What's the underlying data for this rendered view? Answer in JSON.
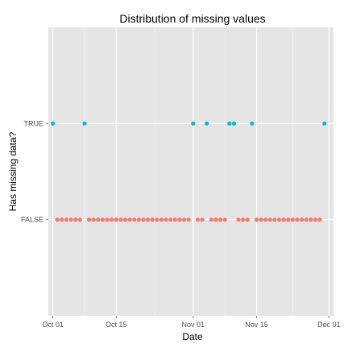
{
  "chart_data": {
    "type": "scatter",
    "title": "Distribution of missing values",
    "xlabel": "Date",
    "ylabel": "Has missing data?",
    "x_axis": {
      "type": "date",
      "range": [
        "2013-09-30",
        "2013-12-02"
      ],
      "ticks": [
        {
          "value": "2013-10-01",
          "label": "Oct 01"
        },
        {
          "value": "2013-10-15",
          "label": "Oct 15"
        },
        {
          "value": "2013-11-01",
          "label": "Nov 01"
        },
        {
          "value": "2013-11-15",
          "label": "Nov 15"
        },
        {
          "value": "2013-12-01",
          "label": "Dec 01"
        }
      ]
    },
    "categories": [
      "FALSE",
      "TRUE"
    ],
    "grid": true,
    "legend": "none",
    "series": [
      {
        "category": "TRUE",
        "color": "#00BFC4",
        "x": [
          "2013-10-01",
          "2013-10-08",
          "2013-11-01",
          "2013-11-04",
          "2013-11-09",
          "2013-11-10",
          "2013-11-14",
          "2013-11-30"
        ]
      },
      {
        "category": "FALSE",
        "color": "#F8766D",
        "x": [
          "2013-10-02",
          "2013-10-03",
          "2013-10-04",
          "2013-10-05",
          "2013-10-06",
          "2013-10-07",
          "2013-10-09",
          "2013-10-10",
          "2013-10-11",
          "2013-10-12",
          "2013-10-13",
          "2013-10-14",
          "2013-10-15",
          "2013-10-16",
          "2013-10-17",
          "2013-10-18",
          "2013-10-19",
          "2013-10-20",
          "2013-10-21",
          "2013-10-22",
          "2013-10-23",
          "2013-10-24",
          "2013-10-25",
          "2013-10-26",
          "2013-10-27",
          "2013-10-28",
          "2013-10-29",
          "2013-10-30",
          "2013-10-31",
          "2013-11-02",
          "2013-11-03",
          "2013-11-05",
          "2013-11-06",
          "2013-11-07",
          "2013-11-08",
          "2013-11-11",
          "2013-11-12",
          "2013-11-13",
          "2013-11-15",
          "2013-11-16",
          "2013-11-17",
          "2013-11-18",
          "2013-11-19",
          "2013-11-20",
          "2013-11-21",
          "2013-11-22",
          "2013-11-23",
          "2013-11-24",
          "2013-11-25",
          "2013-11-26",
          "2013-11-27",
          "2013-11-28",
          "2013-11-29"
        ]
      }
    ]
  }
}
